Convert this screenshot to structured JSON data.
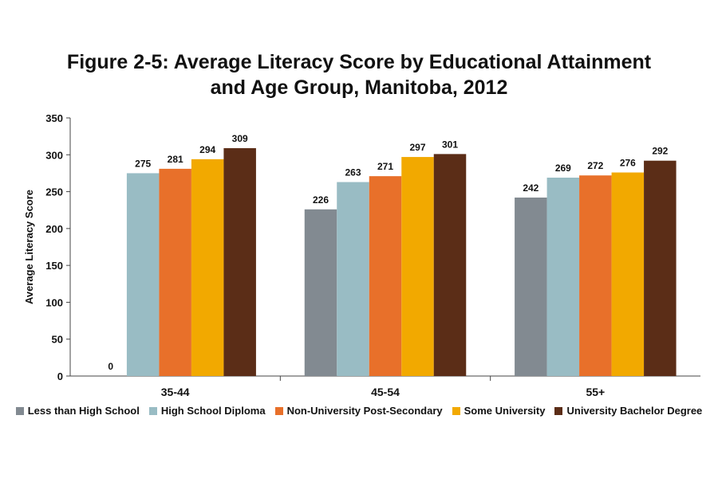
{
  "chart_data": {
    "type": "bar",
    "title_line1": "Figure 2-5: Average Literacy Score by Educational Attainment",
    "title_line2": "and Age Group, Manitoba, 2012",
    "xlabel": "",
    "ylabel": "Average Literacy Score",
    "ylim": [
      0,
      350
    ],
    "yticks": [
      0,
      50,
      100,
      150,
      200,
      250,
      300,
      350
    ],
    "grid": false,
    "legend_position": "bottom",
    "categories": [
      "35-44",
      "45-54",
      "55+"
    ],
    "series": [
      {
        "name": "Less than High School",
        "color": "#828a91",
        "values": [
          0,
          226,
          242
        ]
      },
      {
        "name": "High School Diploma",
        "color": "#99bcc4",
        "values": [
          275,
          263,
          269
        ]
      },
      {
        "name": "Non-University Post-Secondary",
        "color": "#e8702a",
        "values": [
          281,
          271,
          272
        ]
      },
      {
        "name": "Some University",
        "color": "#f2a900",
        "values": [
          294,
          297,
          276
        ]
      },
      {
        "name": "University Bachelor Degree",
        "color": "#5b2d17",
        "values": [
          309,
          301,
          292
        ]
      }
    ]
  }
}
